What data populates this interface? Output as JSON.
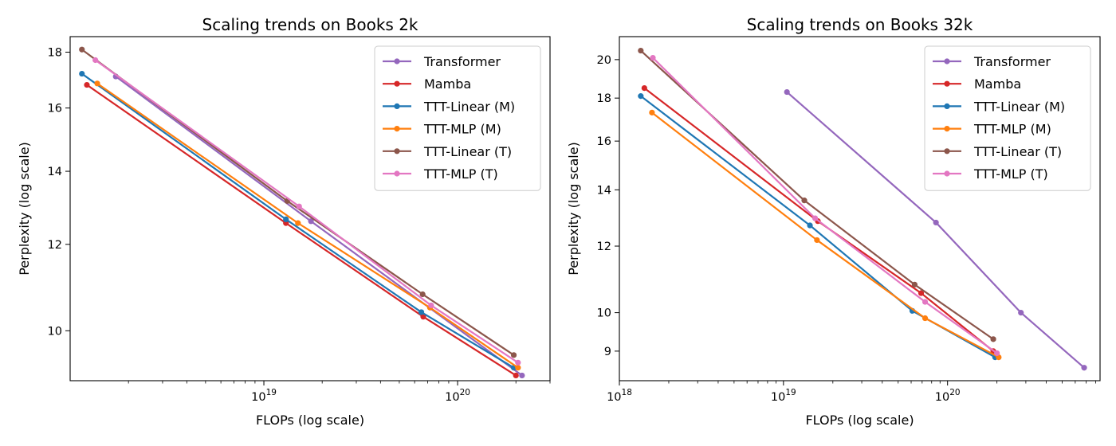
{
  "colors": {
    "Transformer": "#9467bd",
    "Mamba": "#d62728",
    "TTT-Linear (M)": "#1f77b4",
    "TTT-MLP (M)": "#ff7f0e",
    "TTT-Linear (T)": "#8c564b",
    "TTT-MLP (T)": "#e377c2"
  },
  "chart_data": [
    {
      "type": "line",
      "title": "Scaling trends on Books 2k",
      "xlabel": "FLOPs (log scale)",
      "ylabel": "Perplexity (log scale)",
      "xscale": "log",
      "yscale": "log",
      "xlim": [
        1e+18,
        3e+20
      ],
      "ylim": [
        9.0,
        18.6
      ],
      "xticks": [
        {
          "value": 1e+19,
          "base": "10",
          "exp": "19"
        },
        {
          "value": 1e+20,
          "base": "10",
          "exp": "20"
        }
      ],
      "yticks": [
        10,
        12,
        14,
        16,
        18
      ],
      "legend": "top-right",
      "grid": false,
      "series": [
        {
          "name": "Transformer",
          "x": [
            1.72e+18,
            1.75e+19,
            2.15e+20
          ],
          "y": [
            17.1,
            12.6,
            9.1
          ]
        },
        {
          "name": "Mamba",
          "x": [
            1.22e+18,
            1.3e+19,
            6.65e+19,
            2e+20
          ],
          "y": [
            16.8,
            12.55,
            10.3,
            9.1
          ]
        },
        {
          "name": "TTT-Linear (M)",
          "x": [
            1.15e+18,
            1.3e+19,
            6.5e+19,
            1.95e+20
          ],
          "y": [
            17.2,
            12.65,
            10.4,
            9.25
          ]
        },
        {
          "name": "TTT-MLP (M)",
          "x": [
            1.38e+18,
            1.5e+19,
            7.2e+19,
            2.05e+20
          ],
          "y": [
            16.85,
            12.55,
            10.5,
            9.25
          ]
        },
        {
          "name": "TTT-Linear (T)",
          "x": [
            1.15e+18,
            1.32e+19,
            6.6e+19,
            1.95e+20
          ],
          "y": [
            18.1,
            13.15,
            10.8,
            9.5
          ]
        },
        {
          "name": "TTT-MLP (T)",
          "x": [
            1.35e+18,
            1.52e+19,
            7.3e+19,
            2.05e+20
          ],
          "y": [
            17.7,
            13.0,
            10.55,
            9.35
          ]
        }
      ]
    },
    {
      "type": "line",
      "title": "Scaling trends on Books 32k",
      "xlabel": "FLOPs (log scale)",
      "ylabel": "Perplexity (log scale)",
      "xscale": "log",
      "yscale": "log",
      "xlim": [
        1e+18,
        8.5e+20
      ],
      "ylim": [
        8.3,
        21.3
      ],
      "xticks": [
        {
          "value": 1e+18,
          "base": "10",
          "exp": "18"
        },
        {
          "value": 1e+19,
          "base": "10",
          "exp": "19"
        },
        {
          "value": 1e+20,
          "base": "10",
          "exp": "20"
        }
      ],
      "yticks": [
        9,
        10,
        12,
        14,
        16,
        18,
        20
      ],
      "legend": "top-right",
      "grid": false,
      "series": [
        {
          "name": "Transformer",
          "x": [
            1.05e+19,
            8.5e+19,
            2.8e+20,
            6.8e+20
          ],
          "y": [
            18.3,
            12.8,
            10.0,
            8.6
          ]
        },
        {
          "name": "Mamba",
          "x": [
            1.42e+18,
            1.62e+19,
            6.9e+19,
            1.9e+20
          ],
          "y": [
            18.5,
            12.85,
            10.55,
            9.0
          ]
        },
        {
          "name": "TTT-Linear (M)",
          "x": [
            1.35e+18,
            1.45e+19,
            6.1e+19,
            1.95e+20
          ],
          "y": [
            18.1,
            12.7,
            10.05,
            8.85
          ]
        },
        {
          "name": "TTT-MLP (M)",
          "x": [
            1.58e+18,
            1.6e+19,
            7.3e+19,
            2.05e+20
          ],
          "y": [
            17.3,
            12.2,
            9.85,
            8.85
          ]
        },
        {
          "name": "TTT-Linear (T)",
          "x": [
            1.35e+18,
            1.34e+19,
            6.3e+19,
            1.9e+20
          ],
          "y": [
            20.5,
            13.6,
            10.8,
            9.3
          ]
        },
        {
          "name": "TTT-MLP (T)",
          "x": [
            1.6e+18,
            1.56e+19,
            7.3e+19,
            2e+20
          ],
          "y": [
            20.1,
            12.95,
            10.3,
            8.95
          ]
        }
      ]
    }
  ]
}
